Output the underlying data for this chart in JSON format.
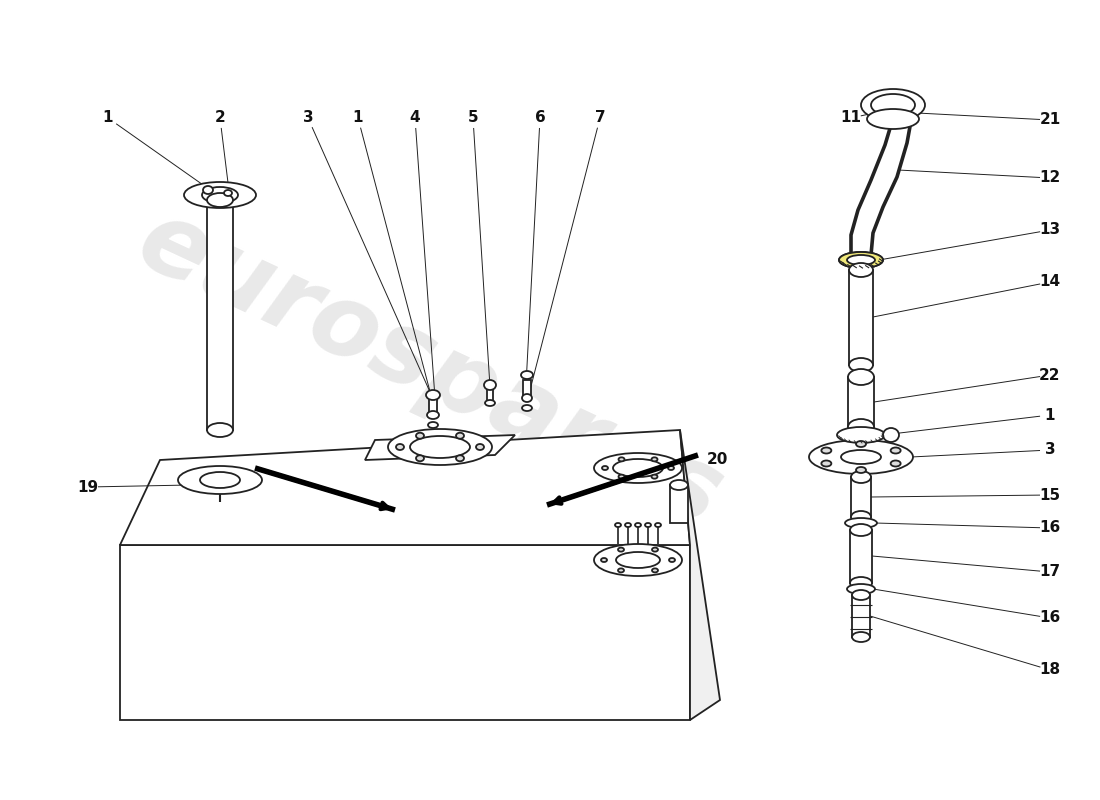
{
  "background_color": "#ffffff",
  "line_color": "#222222",
  "label_color": "#111111",
  "fig_width": 11.0,
  "fig_height": 8.0,
  "dpi": 100
}
